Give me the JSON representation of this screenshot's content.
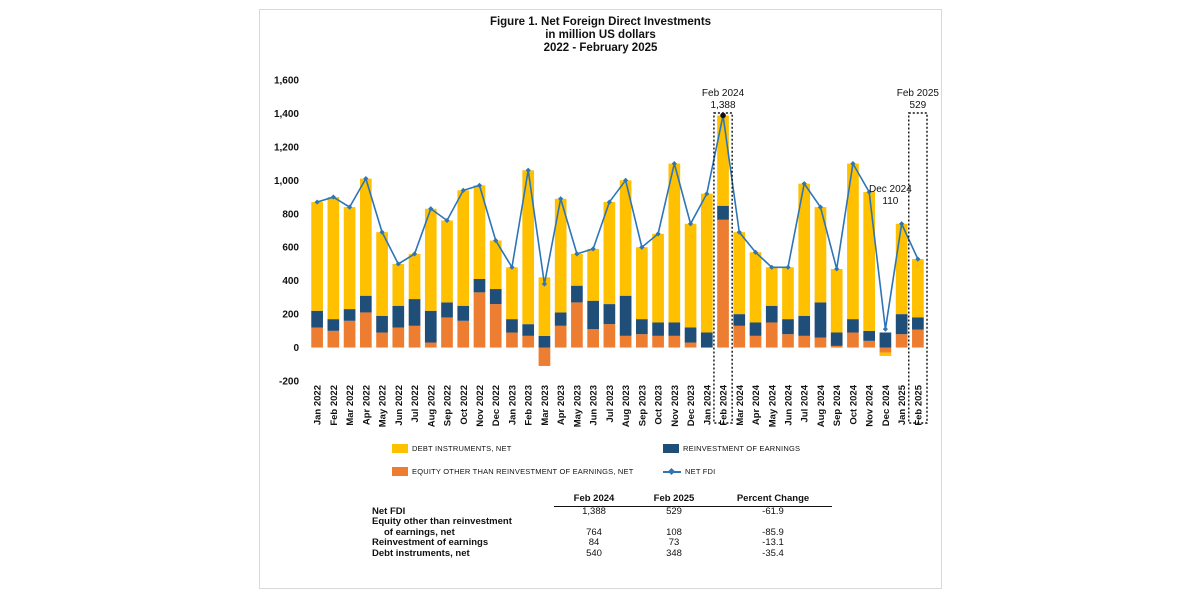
{
  "title": {
    "line1": "Figure 1. Net Foreign Direct Investments",
    "line2": "in million US dollars",
    "line3": "2022 - February 2025"
  },
  "chart_data": {
    "type": "bar",
    "stacked": true,
    "ylim": [
      -200,
      1600
    ],
    "yticks": [
      "-200",
      "0",
      "200",
      "400",
      "600",
      "800",
      "1,000",
      "1,200",
      "1,400",
      "1,600"
    ],
    "ytick_values": [
      -200,
      0,
      200,
      400,
      600,
      800,
      1000,
      1200,
      1400,
      1600
    ],
    "grid": false,
    "legend_position": "bottom",
    "categories": [
      "Jan 2022",
      "Feb 2022",
      "Mar 2022",
      "Apr 2022",
      "May 2022",
      "Jun 2022",
      "Jul 2022",
      "Aug 2022",
      "Sep 2022",
      "Oct 2022",
      "Nov 2022",
      "Dec 2022",
      "Jan 2023",
      "Feb 2023",
      "Mar 2023",
      "Apr 2023",
      "May 2023",
      "Jun 2023",
      "Jul 2023",
      "Aug 2023",
      "Sep 2023",
      "Oct 2023",
      "Nov 2023",
      "Dec 2023",
      "Jan 2024",
      "Feb 2024",
      "Mar 2024",
      "Apr 2024",
      "May 2024",
      "Jun 2024",
      "Jul 2024",
      "Aug 2024",
      "Sep 2024",
      "Oct 2024",
      "Nov 2024",
      "Dec 2024",
      "Jan 2025",
      "Feb 2025"
    ],
    "series": [
      {
        "name": "EQUITY OTHER THAN REINVESTMENT OF EARNINGS, NET",
        "color": "#ED7D31",
        "values": [
          120,
          100,
          160,
          210,
          90,
          120,
          130,
          30,
          180,
          160,
          330,
          260,
          90,
          70,
          -110,
          130,
          270,
          110,
          140,
          70,
          80,
          70,
          70,
          30,
          0,
          764,
          130,
          70,
          150,
          80,
          70,
          60,
          10,
          90,
          40,
          -30,
          80,
          108
        ]
      },
      {
        "name": "REINVESTMENT OF EARNINGS",
        "color": "#1F4E79",
        "values": [
          100,
          70,
          70,
          100,
          100,
          130,
          160,
          190,
          90,
          90,
          80,
          90,
          80,
          70,
          70,
          80,
          100,
          170,
          120,
          240,
          90,
          80,
          80,
          90,
          90,
          84,
          70,
          80,
          100,
          90,
          120,
          210,
          80,
          80,
          60,
          90,
          120,
          73
        ]
      },
      {
        "name": "DEBT INSTRUMENTS, NET",
        "color": "#FFC000",
        "values": [
          650,
          730,
          610,
          700,
          500,
          250,
          270,
          610,
          490,
          690,
          560,
          290,
          310,
          920,
          350,
          680,
          190,
          310,
          610,
          690,
          430,
          530,
          950,
          620,
          830,
          540,
          490,
          420,
          230,
          310,
          790,
          570,
          380,
          930,
          830,
          -20,
          540,
          348
        ]
      },
      {
        "name": "NET FDI",
        "color": "#2E75B6",
        "type": "line",
        "values": [
          870,
          900,
          840,
          1010,
          690,
          500,
          560,
          830,
          760,
          940,
          970,
          640,
          480,
          1060,
          380,
          890,
          560,
          590,
          870,
          1000,
          600,
          680,
          1100,
          740,
          920,
          1388,
          690,
          570,
          480,
          480,
          980,
          840,
          470,
          1100,
          930,
          110,
          740,
          529
        ]
      }
    ],
    "annotations": [
      {
        "label": "Feb 2024",
        "value": "1,388",
        "category": "Feb 2024"
      },
      {
        "label": "Dec 2024",
        "value": "110",
        "category": "Dec 2024"
      },
      {
        "label": "Feb 2025",
        "value": "529",
        "category": "Feb 2025"
      }
    ]
  },
  "legend": {
    "debt": "DEBT INSTRUMENTS, NET",
    "reinvest": "REINVESTMENT OF EARNINGS",
    "equity": "EQUITY OTHER THAN REINVESTMENT OF EARNINGS, NET",
    "netfdi": "NET FDI"
  },
  "table": {
    "headers": [
      "Feb 2024",
      "Feb 2025",
      "Percent Change"
    ],
    "rows": [
      {
        "label": "Net FDI",
        "label2": "",
        "a": "1,388",
        "b": "529",
        "c": "-61.9"
      },
      {
        "label": "Equity other than reinvestment",
        "label2": "of earnings, net",
        "a": "764",
        "b": "108",
        "c": "-85.9"
      },
      {
        "label": "Reinvestment of earnings",
        "label2": "",
        "a": "84",
        "b": "73",
        "c": "-13.1"
      },
      {
        "label": "Debt instruments, net",
        "label2": "",
        "a": "540",
        "b": "348",
        "c": "-35.4"
      }
    ]
  }
}
